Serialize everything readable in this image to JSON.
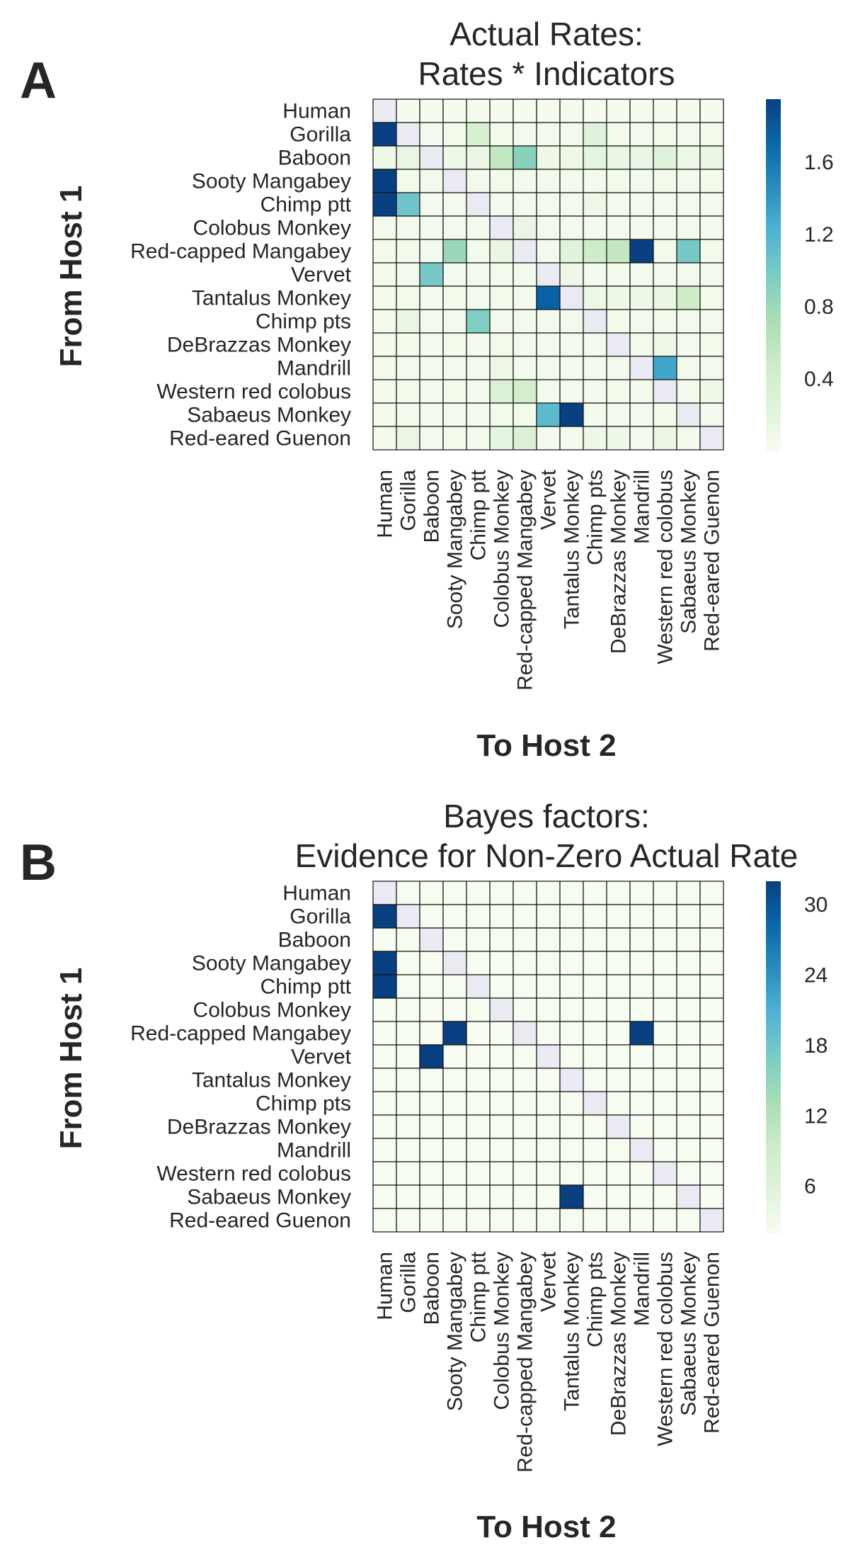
{
  "hosts": [
    "Human",
    "Gorilla",
    "Baboon",
    "Sooty Mangabey",
    "Chimp ptt",
    "Colobus Monkey",
    "Red-capped Mangabey",
    "Vervet",
    "Tantalus Monkey",
    "Chimp pts",
    "DeBrazzas Monkey",
    "Mandrill",
    "Western red colobus",
    "Sabaeus Monkey",
    "Red-eared Guenon"
  ],
  "colors": {
    "diagonal": "#eaeaf2",
    "grid": "#111111",
    "colormap": [
      "#f7fcf0",
      "#e0f3db",
      "#ccebc5",
      "#a8ddb5",
      "#7bccc4",
      "#4eb3d3",
      "#2b8cbe",
      "#0868ac",
      "#084081"
    ]
  },
  "chart_data": [
    {
      "type": "heatmap",
      "panel": "A",
      "title": "Actual Rates:\nRates * Indicators",
      "xlabel": "To Host 2",
      "ylabel": "From Host 1",
      "vmin": 0,
      "vmax": 1.95,
      "colorbar_ticks": [
        "0.4",
        "0.8",
        "1.2",
        "1.6"
      ],
      "colorbar_tick_values": [
        0.4,
        0.8,
        1.2,
        1.6
      ],
      "values": [
        [
          null,
          0.02,
          0.02,
          0.02,
          0.02,
          0.02,
          0.02,
          0.02,
          0.02,
          0.02,
          0.02,
          0.02,
          0.02,
          0.02,
          0.02
        ],
        [
          1.95,
          null,
          0.05,
          0.05,
          0.35,
          0.05,
          0.05,
          0.05,
          0.05,
          0.25,
          0.05,
          0.05,
          0.05,
          0.05,
          0.05
        ],
        [
          0.1,
          0.15,
          null,
          0.1,
          0.15,
          0.55,
          0.9,
          0.1,
          0.1,
          0.2,
          0.15,
          0.15,
          0.25,
          0.1,
          0.15
        ],
        [
          1.95,
          0.05,
          0.05,
          null,
          0.05,
          0.05,
          0.05,
          0.05,
          0.05,
          0.05,
          0.05,
          0.05,
          0.05,
          0.05,
          0.05
        ],
        [
          1.95,
          1.05,
          0.05,
          0.05,
          null,
          0.05,
          0.05,
          0.05,
          0.05,
          0.1,
          0.05,
          0.05,
          0.05,
          0.05,
          0.05
        ],
        [
          0.05,
          0.05,
          0.05,
          0.05,
          0.05,
          null,
          0.15,
          0.05,
          0.05,
          0.05,
          0.05,
          0.05,
          0.05,
          0.05,
          0.05
        ],
        [
          0.05,
          0.05,
          0.05,
          0.8,
          0.05,
          0.15,
          null,
          0.05,
          0.25,
          0.45,
          0.55,
          1.95,
          0.05,
          1.0,
          0.05
        ],
        [
          0.05,
          0.05,
          1.0,
          0.05,
          0.05,
          0.05,
          0.05,
          null,
          0.1,
          0.05,
          0.05,
          0.05,
          0.05,
          0.05,
          0.05
        ],
        [
          0.05,
          0.05,
          0.05,
          0.05,
          0.05,
          0.05,
          0.05,
          1.75,
          null,
          0.1,
          0.1,
          0.1,
          0.15,
          0.45,
          0.05
        ],
        [
          0.05,
          0.15,
          0.05,
          0.05,
          0.95,
          0.05,
          0.05,
          0.05,
          0.05,
          null,
          0.05,
          0.05,
          0.05,
          0.05,
          0.05
        ],
        [
          0.05,
          0.05,
          0.05,
          0.05,
          0.05,
          0.05,
          0.05,
          0.05,
          0.05,
          0.05,
          null,
          0.05,
          0.1,
          0.05,
          0.05
        ],
        [
          0.05,
          0.05,
          0.05,
          0.05,
          0.05,
          0.1,
          0.05,
          0.05,
          0.05,
          0.05,
          0.05,
          null,
          1.3,
          0.05,
          0.05
        ],
        [
          0.05,
          0.05,
          0.05,
          0.05,
          0.05,
          0.3,
          0.4,
          0.05,
          0.05,
          0.05,
          0.05,
          0.05,
          null,
          0.05,
          0.1
        ],
        [
          0.05,
          0.05,
          0.05,
          0.05,
          0.05,
          0.05,
          0.05,
          1.15,
          1.95,
          0.05,
          0.05,
          0.05,
          0.05,
          null,
          0.05
        ],
        [
          0.05,
          0.15,
          0.05,
          0.05,
          0.05,
          0.2,
          0.3,
          0.05,
          0.05,
          0.1,
          0.1,
          0.05,
          0.15,
          0.05,
          null
        ]
      ]
    },
    {
      "type": "heatmap",
      "panel": "B",
      "title": "Bayes factors:\nEvidence for Non-Zero Actual Rate",
      "xlabel": "To Host 2",
      "ylabel": "From Host 1",
      "vmin": 2,
      "vmax": 32,
      "colorbar_ticks": [
        "6",
        "12",
        "18",
        "24",
        "30"
      ],
      "colorbar_tick_values": [
        6,
        12,
        18,
        24,
        30
      ],
      "values": [
        [
          null,
          2,
          2,
          2,
          2,
          2,
          2,
          2,
          2,
          2,
          2,
          2,
          2,
          2,
          2
        ],
        [
          32,
          null,
          2,
          2,
          2,
          2,
          2,
          2,
          2,
          2,
          2,
          2,
          2,
          2,
          2
        ],
        [
          2,
          2,
          null,
          2,
          2,
          2,
          2,
          2,
          2,
          2,
          2,
          2,
          2,
          2,
          2
        ],
        [
          32,
          2,
          2,
          null,
          2,
          2,
          2,
          2,
          2,
          2,
          2,
          2,
          2,
          2,
          2
        ],
        [
          32,
          2,
          2,
          2,
          null,
          2,
          2,
          2,
          2,
          2,
          2,
          2,
          2,
          2,
          2
        ],
        [
          2,
          2,
          2,
          2,
          2,
          null,
          2,
          2,
          2,
          2,
          2,
          2,
          2,
          2,
          2
        ],
        [
          2,
          2,
          2,
          32,
          2,
          2,
          null,
          2,
          2,
          2,
          2,
          32,
          2,
          2,
          2
        ],
        [
          2,
          2,
          32,
          2,
          2,
          2,
          2,
          null,
          2,
          2,
          2,
          2,
          2,
          2,
          2
        ],
        [
          2,
          2,
          2,
          2,
          2,
          2,
          2,
          2,
          null,
          2,
          2,
          2,
          2,
          2,
          2
        ],
        [
          2,
          2,
          2,
          2,
          2,
          2,
          2,
          2,
          2,
          null,
          2,
          2,
          2,
          2,
          2
        ],
        [
          2,
          2,
          2,
          2,
          2,
          2,
          2,
          2,
          2,
          2,
          null,
          2,
          2,
          2,
          2
        ],
        [
          2,
          2,
          2,
          2,
          2,
          2,
          2,
          2,
          2,
          2,
          2,
          null,
          2,
          2,
          2
        ],
        [
          2,
          2,
          2,
          2,
          2,
          2,
          2,
          2,
          2,
          2,
          2,
          2,
          null,
          2,
          2
        ],
        [
          2,
          2,
          2,
          2,
          2,
          2,
          2,
          2,
          32,
          2,
          2,
          2,
          2,
          null,
          2
        ],
        [
          2,
          2,
          2,
          2,
          2,
          2,
          2,
          2,
          2,
          2,
          2,
          2,
          2,
          2,
          null
        ]
      ]
    }
  ]
}
